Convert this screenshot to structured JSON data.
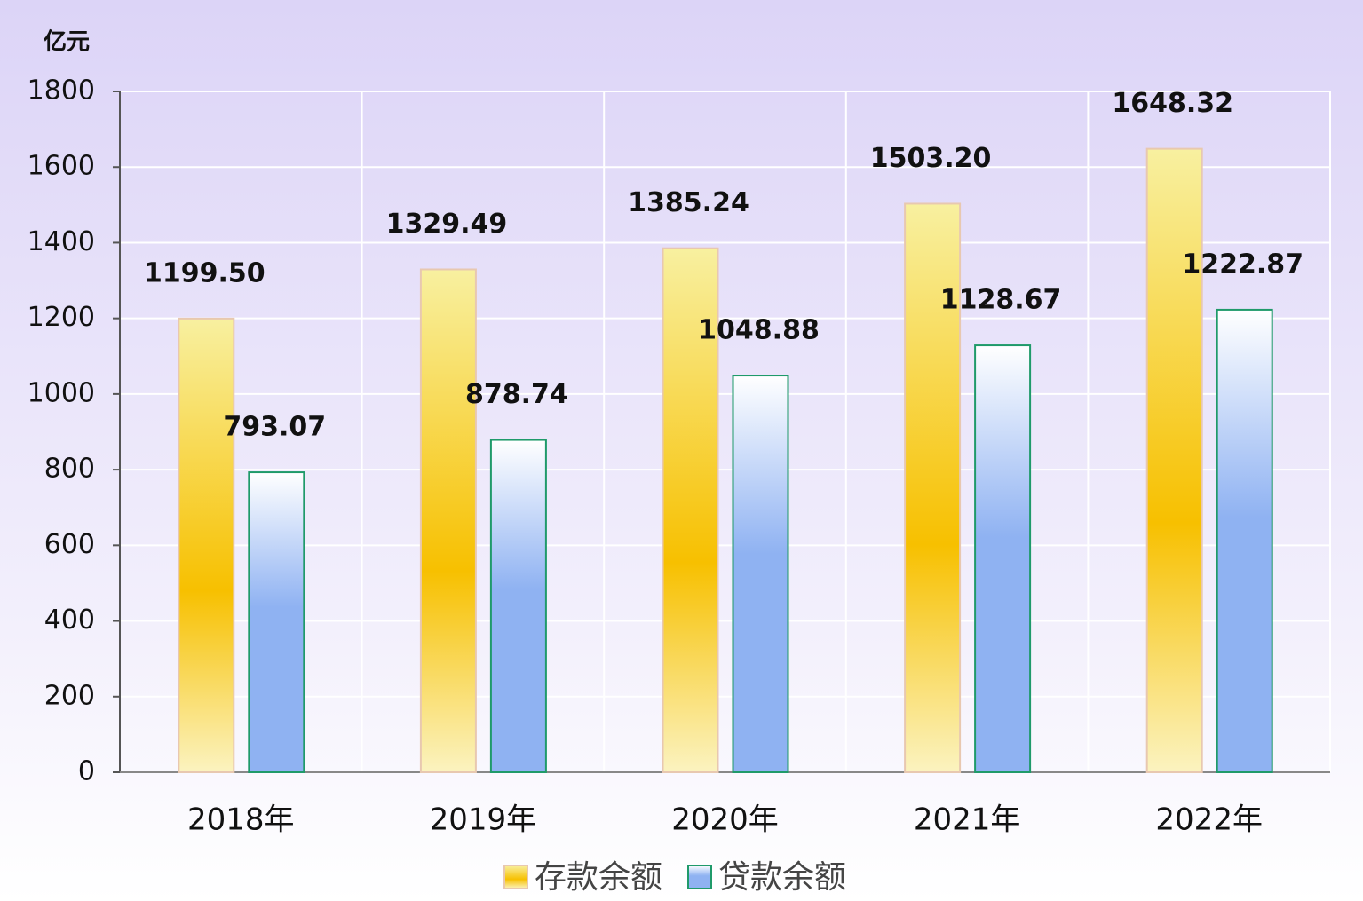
{
  "chart_data": {
    "type": "bar",
    "y_label": "亿元",
    "categories": [
      "2018年",
      "2019年",
      "2020年",
      "2021年",
      "2022年"
    ],
    "series": [
      {
        "name": "存款余额",
        "color": "#f7c000",
        "values": [
          1199.5,
          1329.49,
          1385.24,
          1503.2,
          1648.32
        ],
        "value_labels": [
          "1199.50",
          "1329.49",
          "1385.24",
          "1503.20",
          "1648.32"
        ]
      },
      {
        "name": "贷款余额",
        "color": "#8fb2f2",
        "values": [
          793.07,
          878.74,
          1048.88,
          1128.67,
          1222.87
        ],
        "value_labels": [
          "793.07",
          "878.74",
          "1048.88",
          "1128.67",
          "1222.87"
        ]
      }
    ],
    "ylim": [
      0,
      1800
    ],
    "yticks": [
      0,
      200,
      400,
      600,
      800,
      1000,
      1200,
      1400,
      1600,
      1800
    ],
    "grid": true
  }
}
